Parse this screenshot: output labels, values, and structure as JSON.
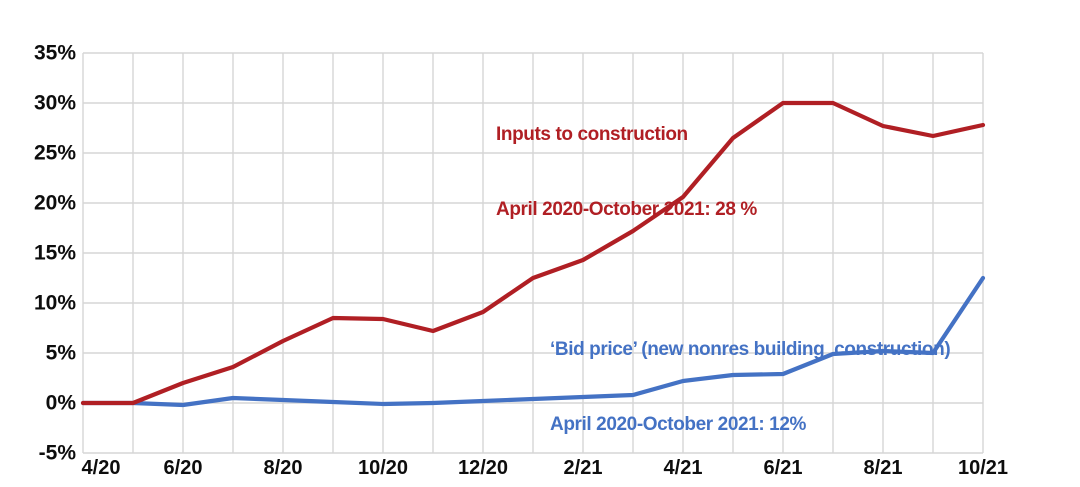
{
  "chart_data": {
    "type": "line",
    "title": "",
    "categories": [
      "4/20",
      "5/20",
      "6/20",
      "7/20",
      "8/20",
      "9/20",
      "10/20",
      "11/20",
      "12/20",
      "1/21",
      "2/21",
      "3/21",
      "4/21",
      "5/21",
      "6/21",
      "7/21",
      "8/21",
      "9/21",
      "10/21"
    ],
    "series": [
      {
        "name": "Inputs to construction",
        "color": "#b01f24",
        "values": [
          0,
          0,
          2.0,
          3.6,
          6.2,
          8.5,
          8.4,
          7.2,
          9.1,
          12.5,
          14.3,
          17.2,
          20.6,
          26.5,
          30.0,
          30.0,
          27.7,
          26.7,
          27.8
        ]
      },
      {
        "name": "Bid price (new nonres building construction)",
        "color": "#4472c4",
        "values": [
          0,
          0,
          -0.2,
          0.5,
          0.3,
          0.1,
          -0.1,
          0.0,
          0.2,
          0.4,
          0.6,
          0.8,
          2.2,
          2.8,
          2.9,
          4.9,
          5.2,
          5.0,
          12.5
        ]
      }
    ],
    "xlabel": "",
    "ylabel": "",
    "ylim": [
      -5,
      35
    ],
    "ytick_values": [
      35,
      30,
      25,
      20,
      15,
      10,
      5,
      0,
      -5
    ],
    "ytick_labels": [
      "35%",
      "30%",
      "25%",
      "20%",
      "15%",
      "10%",
      "5%",
      "0%",
      "-5%"
    ],
    "xtick_indices": [
      0,
      2,
      4,
      6,
      8,
      10,
      12,
      14,
      16,
      18
    ],
    "xtick_labels": [
      "4/20",
      "6/20",
      "8/20",
      "10/20",
      "12/20",
      "2/21",
      "4/21",
      "6/21",
      "8/21",
      "10/21"
    ],
    "grid": true,
    "legend_position": "inline-annotations",
    "annotations": {
      "inputs": {
        "line1": "Inputs to construction",
        "line2": "April 2020-October 2021: 28 %",
        "color": "#b01f24"
      },
      "bid": {
        "line1": "‘Bid price’ (new nonres building  construction)",
        "line2": "April 2020-October 2021: 12%",
        "color": "#4472c4"
      }
    },
    "colors": {
      "grid": "#d6d6d6",
      "axis_text": "#0d0d0d",
      "background": "#ffffff"
    }
  }
}
